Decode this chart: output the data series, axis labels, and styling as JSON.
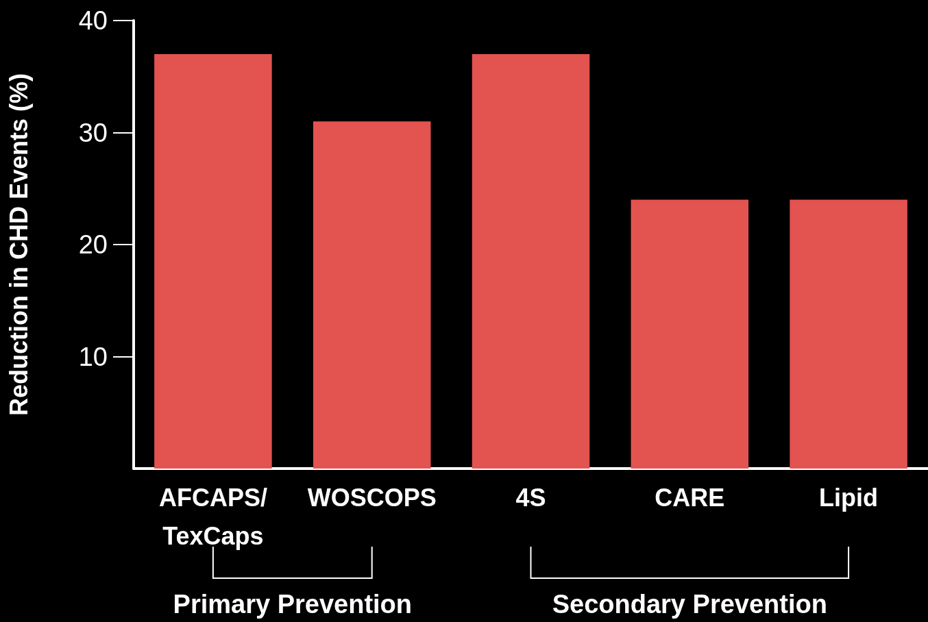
{
  "chart_data": {
    "type": "bar",
    "ylabel": "Reduction in CHD Events (%)",
    "categories": [
      "AFCAPS/\nTexCaps",
      "WOSCOPS",
      "4S",
      "CARE",
      "Lipid"
    ],
    "values": [
      37,
      31,
      37,
      24,
      24
    ],
    "color": "#e35350",
    "ylim": [
      0,
      40
    ],
    "yticks": [
      10,
      20,
      30,
      40
    ],
    "grid": false,
    "annotations": [
      "Primary Prevention",
      "Secondary Prevention"
    ]
  }
}
